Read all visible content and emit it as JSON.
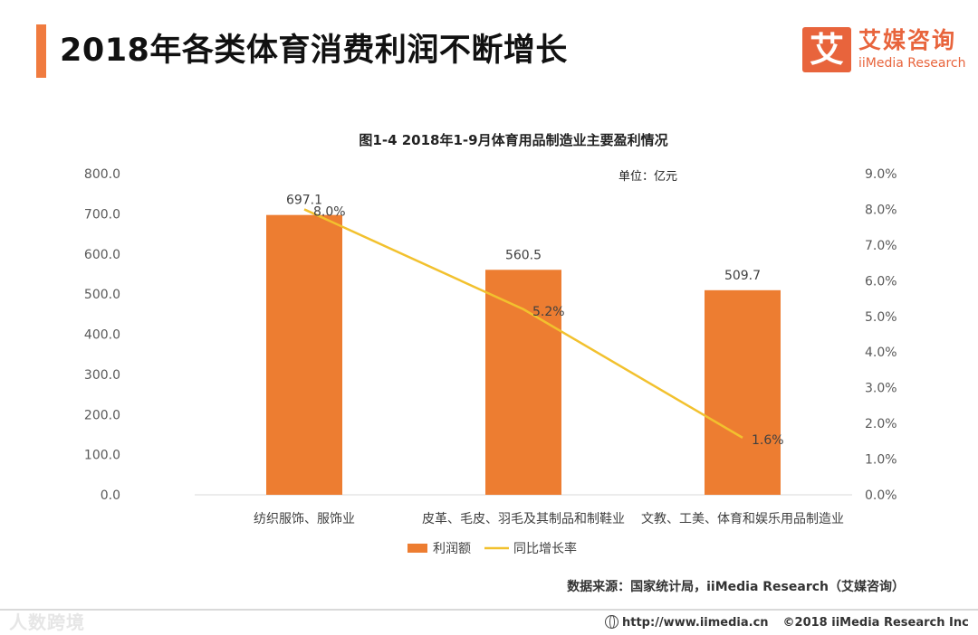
{
  "page": {
    "title": "2018年各类体育消费利润不断增长",
    "logo_mark": "艾",
    "logo_cn": "艾媒咨询",
    "logo_en": "iiMedia Research",
    "source": "数据来源：国家统计局，iiMedia Research（艾媒咨询）",
    "watermark": "人数跨境",
    "footer_url": "http://www.iimedia.cn",
    "footer_copyright": "©2018  iiMedia Research  Inc"
  },
  "colors": {
    "accent": "#f07b3f",
    "bar": "#ed7d31",
    "line": "#f2c12e",
    "brand": "#e8643c"
  },
  "chart_data": {
    "type": "bar",
    "title": "图1-4 2018年1-9月体育用品制造业主要盈利情况",
    "unit_note": "单位：亿元",
    "categories": [
      "纺织服饰、服饰业",
      "皮革、毛皮、羽毛及其制品和制鞋业",
      "文教、工美、体育和娱乐用品制造业"
    ],
    "series": [
      {
        "name": "利润额",
        "kind": "bar",
        "axis": "left",
        "values": [
          697.1,
          560.5,
          509.7
        ],
        "labels": [
          "697.1",
          "560.5",
          "509.7"
        ]
      },
      {
        "name": "同比增长率",
        "kind": "line",
        "axis": "right",
        "values": [
          8.0,
          5.2,
          1.6
        ],
        "labels": [
          "8.0%",
          "5.2%",
          "1.6%"
        ]
      }
    ],
    "y_left": {
      "min": 0,
      "max": 800,
      "ticks": [
        "0.0",
        "100.0",
        "200.0",
        "300.0",
        "400.0",
        "500.0",
        "600.0",
        "700.0",
        "800.0"
      ]
    },
    "y_right": {
      "min": 0,
      "max": 9,
      "ticks": [
        "0.0%",
        "1.0%",
        "2.0%",
        "3.0%",
        "4.0%",
        "5.0%",
        "6.0%",
        "7.0%",
        "8.0%",
        "9.0%"
      ]
    },
    "legend": {
      "placement": "bottom-center",
      "items": [
        "利润额",
        "同比增长率"
      ]
    },
    "grid": false
  }
}
